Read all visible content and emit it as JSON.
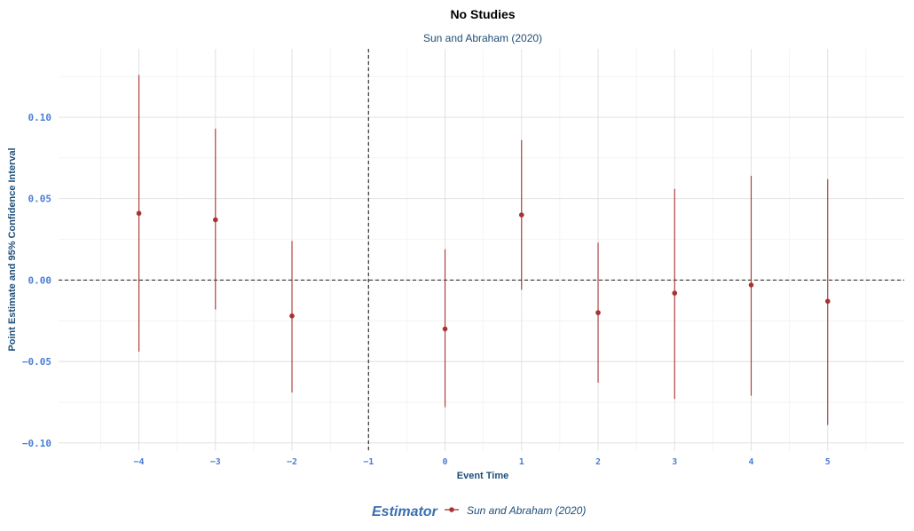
{
  "chart_data": {
    "type": "scatter",
    "title": "No Studies",
    "subtitle": "Sun and Abraham (2020)",
    "xlabel": "Event Time",
    "ylabel": "Point Estimate and 95% Confidence Interval",
    "x_ticks": [
      -4,
      -3,
      -2,
      -1,
      0,
      1,
      2,
      3,
      4,
      5
    ],
    "x_tick_labels": [
      "−4",
      "−3",
      "−2",
      "−1",
      "0",
      "1",
      "2",
      "3",
      "4",
      "5"
    ],
    "y_ticks": [
      -0.1,
      -0.05,
      0.0,
      0.05,
      0.1
    ],
    "y_tick_labels": [
      "−0.10",
      "−0.05",
      "0.00",
      "0.05",
      "0.10"
    ],
    "xlim": [
      -5.05,
      6.0
    ],
    "ylim": [
      -0.105,
      0.142
    ],
    "grid": true,
    "reference_lines": {
      "vertical_x": -1,
      "horizontal_y": 0
    },
    "legend": {
      "title": "Estimator",
      "position": "bottom"
    },
    "series": [
      {
        "name": "Sun and Abraham (2020)",
        "color": "#a83232",
        "points": [
          {
            "x": -4,
            "estimate": 0.041,
            "ci_low": -0.044,
            "ci_high": 0.126
          },
          {
            "x": -3,
            "estimate": 0.037,
            "ci_low": -0.018,
            "ci_high": 0.093
          },
          {
            "x": -2,
            "estimate": -0.022,
            "ci_low": -0.069,
            "ci_high": 0.024
          },
          {
            "x": 0,
            "estimate": -0.03,
            "ci_low": -0.078,
            "ci_high": 0.019
          },
          {
            "x": 1,
            "estimate": 0.04,
            "ci_low": -0.006,
            "ci_high": 0.086
          },
          {
            "x": 2,
            "estimate": -0.02,
            "ci_low": -0.063,
            "ci_high": 0.023
          },
          {
            "x": 3,
            "estimate": -0.008,
            "ci_low": -0.073,
            "ci_high": 0.056
          },
          {
            "x": 4,
            "estimate": -0.003,
            "ci_low": -0.071,
            "ci_high": 0.064
          },
          {
            "x": 5,
            "estimate": -0.013,
            "ci_low": -0.089,
            "ci_high": 0.062
          }
        ]
      }
    ]
  },
  "colors": {
    "tick_text": "#4a7fd4",
    "axis_title": "#1f4e79",
    "subtitle": "#1f4e79",
    "legend_title": "#3a6fb0",
    "legend_label": "#1f4e79",
    "grid_major": "#dedede",
    "grid_minor": "#efefef",
    "reference_line": "#333333"
  }
}
